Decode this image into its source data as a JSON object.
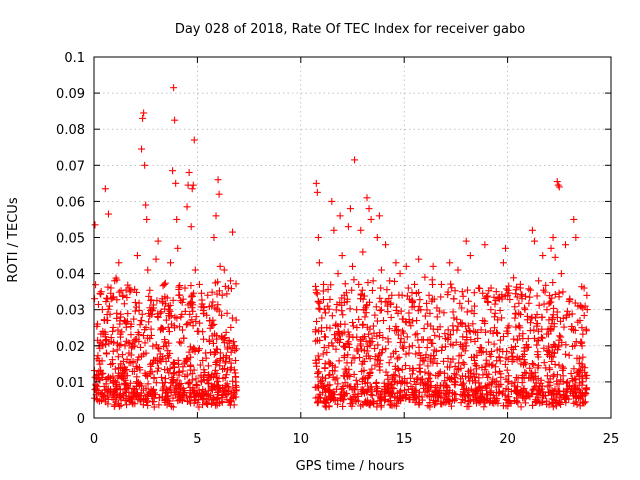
{
  "chart_data": {
    "type": "scatter",
    "title": "Day 028 of 2018, Rate Of TEC Index for receiver gabo",
    "xlabel": "GPS time / hours",
    "ylabel": "ROTI / TECUs",
    "xlim": [
      0,
      25
    ],
    "ylim": [
      0,
      0.1
    ],
    "xticks": [
      0,
      5,
      10,
      15,
      20,
      25
    ],
    "xtick_labels": [
      "0",
      "5",
      "10",
      "15",
      "20",
      "25"
    ],
    "yticks": [
      0,
      0.01,
      0.02,
      0.03,
      0.04,
      0.05,
      0.06,
      0.07,
      0.08,
      0.09,
      0.1
    ],
    "ytick_labels": [
      "0",
      "0.01",
      "0.02",
      "0.03",
      "0.04",
      "0.05",
      "0.06",
      "0.07",
      "0.08",
      "0.09",
      "0.1"
    ],
    "grid": true,
    "marker": "plus",
    "color": "#ff0000",
    "series": [
      {
        "name": "ROTI",
        "points": [
          [
            0.05,
            0.0535
          ],
          [
            0.1,
            0.009
          ],
          [
            0.2,
            0.012
          ],
          [
            0.3,
            0.021
          ],
          [
            0.35,
            0.035
          ],
          [
            0.4,
            0.007
          ],
          [
            0.5,
            0.027
          ],
          [
            0.55,
            0.0635
          ],
          [
            0.6,
            0.018
          ],
          [
            0.7,
            0.0565
          ],
          [
            0.75,
            0.031
          ],
          [
            0.8,
            0.011
          ],
          [
            0.9,
            0.024
          ],
          [
            1.0,
            0.038
          ],
          [
            1.05,
            0.008
          ],
          [
            1.1,
            0.029
          ],
          [
            1.2,
            0.043
          ],
          [
            1.3,
            0.015
          ],
          [
            1.4,
            0.034
          ],
          [
            1.5,
            0.02
          ],
          [
            1.6,
            0.009
          ],
          [
            1.7,
            0.036
          ],
          [
            1.8,
            0.026
          ],
          [
            1.9,
            0.006
          ],
          [
            2.0,
            0.032
          ],
          [
            2.1,
            0.045
          ],
          [
            2.2,
            0.014
          ],
          [
            2.3,
            0.0745
          ],
          [
            2.35,
            0.083
          ],
          [
            2.4,
            0.0845
          ],
          [
            2.45,
            0.07
          ],
          [
            2.5,
            0.059
          ],
          [
            2.55,
            0.055
          ],
          [
            2.6,
            0.041
          ],
          [
            2.7,
            0.022
          ],
          [
            2.8,
            0.03
          ],
          [
            2.9,
            0.011
          ],
          [
            3.0,
            0.044
          ],
          [
            3.1,
            0.049
          ],
          [
            3.2,
            0.029
          ],
          [
            3.3,
            0.017
          ],
          [
            3.4,
            0.037
          ],
          [
            3.5,
            0.008
          ],
          [
            3.6,
            0.031
          ],
          [
            3.7,
            0.043
          ],
          [
            3.8,
            0.0685
          ],
          [
            3.85,
            0.0915
          ],
          [
            3.9,
            0.0825
          ],
          [
            3.95,
            0.065
          ],
          [
            4.0,
            0.055
          ],
          [
            4.05,
            0.047
          ],
          [
            4.1,
            0.034
          ],
          [
            4.2,
            0.028
          ],
          [
            4.3,
            0.013
          ],
          [
            4.4,
            0.036
          ],
          [
            4.5,
            0.0585
          ],
          [
            4.55,
            0.0645
          ],
          [
            4.6,
            0.068
          ],
          [
            4.7,
            0.053
          ],
          [
            4.75,
            0.0635
          ],
          [
            4.8,
            0.0645
          ],
          [
            4.85,
            0.077
          ],
          [
            4.9,
            0.041
          ],
          [
            5.0,
            0.024
          ],
          [
            5.1,
            0.037
          ],
          [
            5.2,
            0.01
          ],
          [
            5.3,
            0.029
          ],
          [
            5.4,
            0.018
          ],
          [
            5.5,
            0.034
          ],
          [
            5.6,
            0.027
          ],
          [
            5.7,
            0.012
          ],
          [
            5.8,
            0.05
          ],
          [
            5.9,
            0.056
          ],
          [
            6.0,
            0.066
          ],
          [
            6.05,
            0.062
          ],
          [
            6.1,
            0.042
          ],
          [
            6.2,
            0.034
          ],
          [
            6.3,
            0.041
          ],
          [
            6.4,
            0.012
          ],
          [
            6.5,
            0.036
          ],
          [
            6.6,
            0.038
          ],
          [
            6.7,
            0.0515
          ],
          [
            6.8,
            0.02
          ],
          [
            6.85,
            0.009
          ],
          [
            10.75,
            0.065
          ],
          [
            10.8,
            0.0625
          ],
          [
            10.85,
            0.05
          ],
          [
            10.9,
            0.043
          ],
          [
            11.0,
            0.024
          ],
          [
            11.1,
            0.037
          ],
          [
            11.2,
            0.011
          ],
          [
            11.3,
            0.031
          ],
          [
            11.5,
            0.06
          ],
          [
            11.6,
            0.052
          ],
          [
            11.7,
            0.026
          ],
          [
            11.8,
            0.04
          ],
          [
            11.9,
            0.056
          ],
          [
            12.0,
            0.045
          ],
          [
            12.1,
            0.034
          ],
          [
            12.2,
            0.013
          ],
          [
            12.3,
            0.053
          ],
          [
            12.4,
            0.058
          ],
          [
            12.5,
            0.042
          ],
          [
            12.6,
            0.0715
          ],
          [
            12.7,
            0.03
          ],
          [
            12.8,
            0.037
          ],
          [
            12.9,
            0.052
          ],
          [
            13.0,
            0.046
          ],
          [
            13.1,
            0.028
          ],
          [
            13.2,
            0.061
          ],
          [
            13.3,
            0.058
          ],
          [
            13.4,
            0.055
          ],
          [
            13.5,
            0.038
          ],
          [
            13.6,
            0.017
          ],
          [
            13.7,
            0.05
          ],
          [
            13.8,
            0.056
          ],
          [
            13.9,
            0.041
          ],
          [
            14.0,
            0.027
          ],
          [
            14.1,
            0.048
          ],
          [
            14.2,
            0.031
          ],
          [
            14.3,
            0.038
          ],
          [
            14.4,
            0.034
          ],
          [
            14.5,
            0.012
          ],
          [
            14.6,
            0.043
          ],
          [
            14.7,
            0.029
          ],
          [
            14.8,
            0.04
          ],
          [
            14.9,
            0.034
          ],
          [
            15.0,
            0.021
          ],
          [
            15.1,
            0.042
          ],
          [
            15.2,
            0.036
          ],
          [
            15.3,
            0.011
          ],
          [
            15.4,
            0.032
          ],
          [
            15.5,
            0.037
          ],
          [
            15.6,
            0.027
          ],
          [
            15.7,
            0.044
          ],
          [
            15.8,
            0.03
          ],
          [
            15.9,
            0.016
          ],
          [
            16.0,
            0.039
          ],
          [
            16.2,
            0.034
          ],
          [
            16.4,
            0.042
          ],
          [
            16.6,
            0.028
          ],
          [
            16.8,
            0.037
          ],
          [
            17.0,
            0.022
          ],
          [
            17.2,
            0.043
          ],
          [
            17.4,
            0.033
          ],
          [
            17.6,
            0.041
          ],
          [
            17.8,
            0.026
          ],
          [
            18.0,
            0.049
          ],
          [
            18.2,
            0.045
          ],
          [
            18.4,
            0.031
          ],
          [
            18.6,
            0.036
          ],
          [
            18.8,
            0.027
          ],
          [
            18.9,
            0.048
          ],
          [
            19.0,
            0.015
          ],
          [
            19.2,
            0.036
          ],
          [
            19.4,
            0.029
          ],
          [
            19.6,
            0.033
          ],
          [
            19.8,
            0.043
          ],
          [
            19.9,
            0.047
          ],
          [
            20.0,
            0.034
          ],
          [
            20.2,
            0.018
          ],
          [
            20.4,
            0.029
          ],
          [
            20.6,
            0.025
          ],
          [
            20.8,
            0.011
          ],
          [
            21.0,
            0.022
          ],
          [
            21.2,
            0.052
          ],
          [
            21.3,
            0.049
          ],
          [
            21.5,
            0.038
          ],
          [
            21.7,
            0.045
          ],
          [
            21.9,
            0.03
          ],
          [
            22.1,
            0.047
          ],
          [
            22.2,
            0.05
          ],
          [
            22.3,
            0.0445
          ],
          [
            22.4,
            0.0655
          ],
          [
            22.45,
            0.0645
          ],
          [
            22.5,
            0.064
          ],
          [
            22.6,
            0.04
          ],
          [
            22.8,
            0.048
          ],
          [
            23.0,
            0.033
          ],
          [
            23.2,
            0.055
          ],
          [
            23.3,
            0.05
          ],
          [
            23.4,
            0.031
          ],
          [
            23.5,
            0.027
          ],
          [
            23.6,
            0.02
          ],
          [
            23.7,
            0.036
          ],
          [
            23.75,
            0.031
          ],
          [
            23.8,
            0.011
          ]
        ]
      }
    ]
  }
}
